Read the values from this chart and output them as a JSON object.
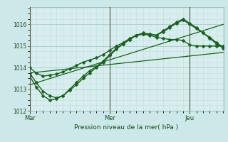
{
  "xlabel": "Pression niveau de la mer( hPa )",
  "bg_color": "#cce8e8",
  "plot_bg_color": "#d8eeee",
  "grid_major_color": "#aacccc",
  "grid_minor_color": "#c0dddd",
  "line_color": "#1a6020",
  "ylim": [
    1012.0,
    1016.8
  ],
  "yticks": [
    1012,
    1013,
    1014,
    1015,
    1016
  ],
  "xlim": [
    0.0,
    2.42
  ],
  "day_positions": [
    0.0,
    1.0,
    2.0
  ],
  "day_labels": [
    "Mar",
    "Mer",
    "Jeu"
  ],
  "series": [
    {
      "x": [
        0.0,
        0.083,
        0.167,
        0.25,
        0.333,
        0.417,
        0.5,
        0.583,
        0.667,
        0.75,
        0.833,
        0.917,
        1.0,
        1.083,
        1.167,
        1.25,
        1.333,
        1.417,
        1.5,
        1.583,
        1.667,
        1.75,
        1.833,
        1.917,
        2.0,
        2.083,
        2.167,
        2.25,
        2.333,
        2.417
      ],
      "y": [
        1014.0,
        1013.75,
        1013.6,
        1013.65,
        1013.7,
        1013.8,
        1013.95,
        1014.1,
        1014.25,
        1014.35,
        1014.45,
        1014.6,
        1014.8,
        1015.0,
        1015.15,
        1015.35,
        1015.5,
        1015.55,
        1015.5,
        1015.4,
        1015.35,
        1015.3,
        1015.3,
        1015.25,
        1015.05,
        1015.0,
        1015.0,
        1015.0,
        1015.0,
        1015.0
      ],
      "has_markers": true
    },
    {
      "x": [
        0.0,
        0.083,
        0.167,
        0.25,
        0.333,
        0.417,
        0.5,
        0.583,
        0.667,
        0.75,
        0.833,
        0.917,
        1.0,
        1.083,
        1.167,
        1.25,
        1.333,
        1.417,
        1.5,
        1.583,
        1.667,
        1.75,
        1.833,
        1.917,
        2.0,
        2.083,
        2.167,
        2.25,
        2.333,
        2.417
      ],
      "y": [
        1013.75,
        1013.3,
        1012.9,
        1012.7,
        1012.6,
        1012.7,
        1013.0,
        1013.3,
        1013.6,
        1013.85,
        1014.05,
        1014.3,
        1014.6,
        1014.9,
        1015.1,
        1015.3,
        1015.5,
        1015.6,
        1015.55,
        1015.5,
        1015.65,
        1015.85,
        1016.05,
        1016.2,
        1016.0,
        1015.8,
        1015.6,
        1015.4,
        1015.15,
        1014.95
      ],
      "has_markers": true
    },
    {
      "x": [
        0.0,
        0.083,
        0.167,
        0.25,
        0.333,
        0.417,
        0.5,
        0.583,
        0.667,
        0.75,
        0.833,
        0.917,
        1.0,
        1.083,
        1.167,
        1.25,
        1.333,
        1.417,
        1.5,
        1.583,
        1.667,
        1.75,
        1.833,
        1.917,
        2.0,
        2.083,
        2.167,
        2.25,
        2.333,
        2.417
      ],
      "y": [
        1013.6,
        1013.1,
        1012.7,
        1012.5,
        1012.55,
        1012.7,
        1012.95,
        1013.2,
        1013.5,
        1013.75,
        1014.0,
        1014.25,
        1014.55,
        1014.85,
        1015.1,
        1015.3,
        1015.5,
        1015.55,
        1015.55,
        1015.5,
        1015.7,
        1015.9,
        1016.1,
        1016.25,
        1016.05,
        1015.85,
        1015.6,
        1015.35,
        1015.1,
        1014.9
      ],
      "has_markers": true
    },
    {
      "x": [
        0.0,
        2.417
      ],
      "y": [
        1013.75,
        1014.7
      ],
      "has_markers": false
    },
    {
      "x": [
        0.0,
        2.417
      ],
      "y": [
        1013.2,
        1016.0
      ],
      "has_markers": false
    }
  ]
}
